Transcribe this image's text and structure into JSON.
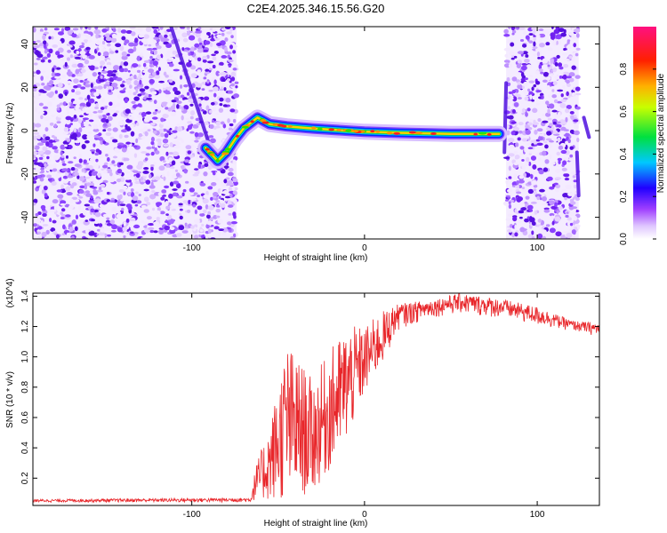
{
  "chart_data": [
    {
      "type": "heatmap",
      "title": "C2E4.2025.346.15.56.G20",
      "xlabel": "Height of straight line (km)",
      "ylabel": "Frequency (Hz)",
      "xlim": [
        -192,
        136
      ],
      "ylim": [
        -50,
        48
      ],
      "xticks": [
        -100,
        0,
        100
      ],
      "yticks": [
        -40,
        -20,
        0,
        20,
        40
      ],
      "colorbar": {
        "label": "Normalized spectral amplitude",
        "range": [
          0,
          1
        ],
        "ticks": [
          "0.0",
          "0.2",
          "0.4",
          "0.6",
          "0.8"
        ],
        "colors": [
          "#ffffff",
          "#e0c8ff",
          "#8020ff",
          "#0000ff",
          "#00e0ff",
          "#00e000",
          "#ffff00",
          "#ff8000",
          "#ff0000",
          "#ff1080"
        ]
      },
      "ridge": [
        {
          "x": -92,
          "y": -8
        },
        {
          "x": -85,
          "y": -14
        },
        {
          "x": -80,
          "y": -10
        },
        {
          "x": -75,
          "y": -4
        },
        {
          "x": -70,
          "y": 1
        },
        {
          "x": -62,
          "y": 6
        },
        {
          "x": -55,
          "y": 3
        },
        {
          "x": -45,
          "y": 2
        },
        {
          "x": -30,
          "y": 1
        },
        {
          "x": -10,
          "y": 0
        },
        {
          "x": 0,
          "y": -0.5
        },
        {
          "x": 20,
          "y": -1
        },
        {
          "x": 50,
          "y": -1.5
        },
        {
          "x": 78,
          "y": -1.5
        }
      ],
      "noise_regions": [
        [
          -192,
          -74
        ],
        [
          82,
          124
        ]
      ],
      "streaks": [
        {
          "x1": -112,
          "y1": 48,
          "x2": -86,
          "y2": -16
        },
        {
          "x1": 82,
          "y1": 22,
          "x2": 81,
          "y2": -10
        },
        {
          "x1": 123,
          "y1": -10,
          "x2": 124,
          "y2": -30
        },
        {
          "x1": 127,
          "y1": 6,
          "x2": 130,
          "y2": -3
        }
      ],
      "grid": false
    },
    {
      "type": "line",
      "xlabel": "Height of straight line (km)",
      "ylabel": "SNR (10 * v/v)",
      "y_multiplier": "(x10^4)",
      "xlim": [
        -192,
        136
      ],
      "ylim": [
        0.02,
        1.42
      ],
      "xticks": [
        -100,
        0,
        100
      ],
      "yticks": [
        0.2,
        0.4,
        0.6,
        0.8,
        1.0,
        1.2,
        1.4
      ],
      "color": "#e8262a",
      "envelope": [
        {
          "x": -192,
          "lo": 0.04,
          "hi": 0.06
        },
        {
          "x": -66,
          "lo": 0.04,
          "hi": 0.07
        },
        {
          "x": -63,
          "lo": 0.06,
          "hi": 0.28
        },
        {
          "x": -55,
          "lo": 0.05,
          "hi": 0.55
        },
        {
          "x": -45,
          "lo": 0.05,
          "hi": 1.1
        },
        {
          "x": -30,
          "lo": 0.1,
          "hi": 0.85
        },
        {
          "x": -20,
          "lo": 0.25,
          "hi": 1.05
        },
        {
          "x": -10,
          "lo": 0.45,
          "hi": 1.2
        },
        {
          "x": 0,
          "lo": 0.75,
          "hi": 1.2
        },
        {
          "x": 10,
          "lo": 0.95,
          "hi": 1.3
        },
        {
          "x": 20,
          "lo": 1.18,
          "hi": 1.35
        },
        {
          "x": 40,
          "lo": 1.26,
          "hi": 1.38
        },
        {
          "x": 55,
          "lo": 1.28,
          "hi": 1.42
        },
        {
          "x": 80,
          "lo": 1.25,
          "hi": 1.38
        },
        {
          "x": 100,
          "lo": 1.2,
          "hi": 1.33
        },
        {
          "x": 120,
          "lo": 1.17,
          "hi": 1.24
        },
        {
          "x": 136,
          "lo": 1.13,
          "hi": 1.22
        }
      ],
      "grid": false
    }
  ]
}
